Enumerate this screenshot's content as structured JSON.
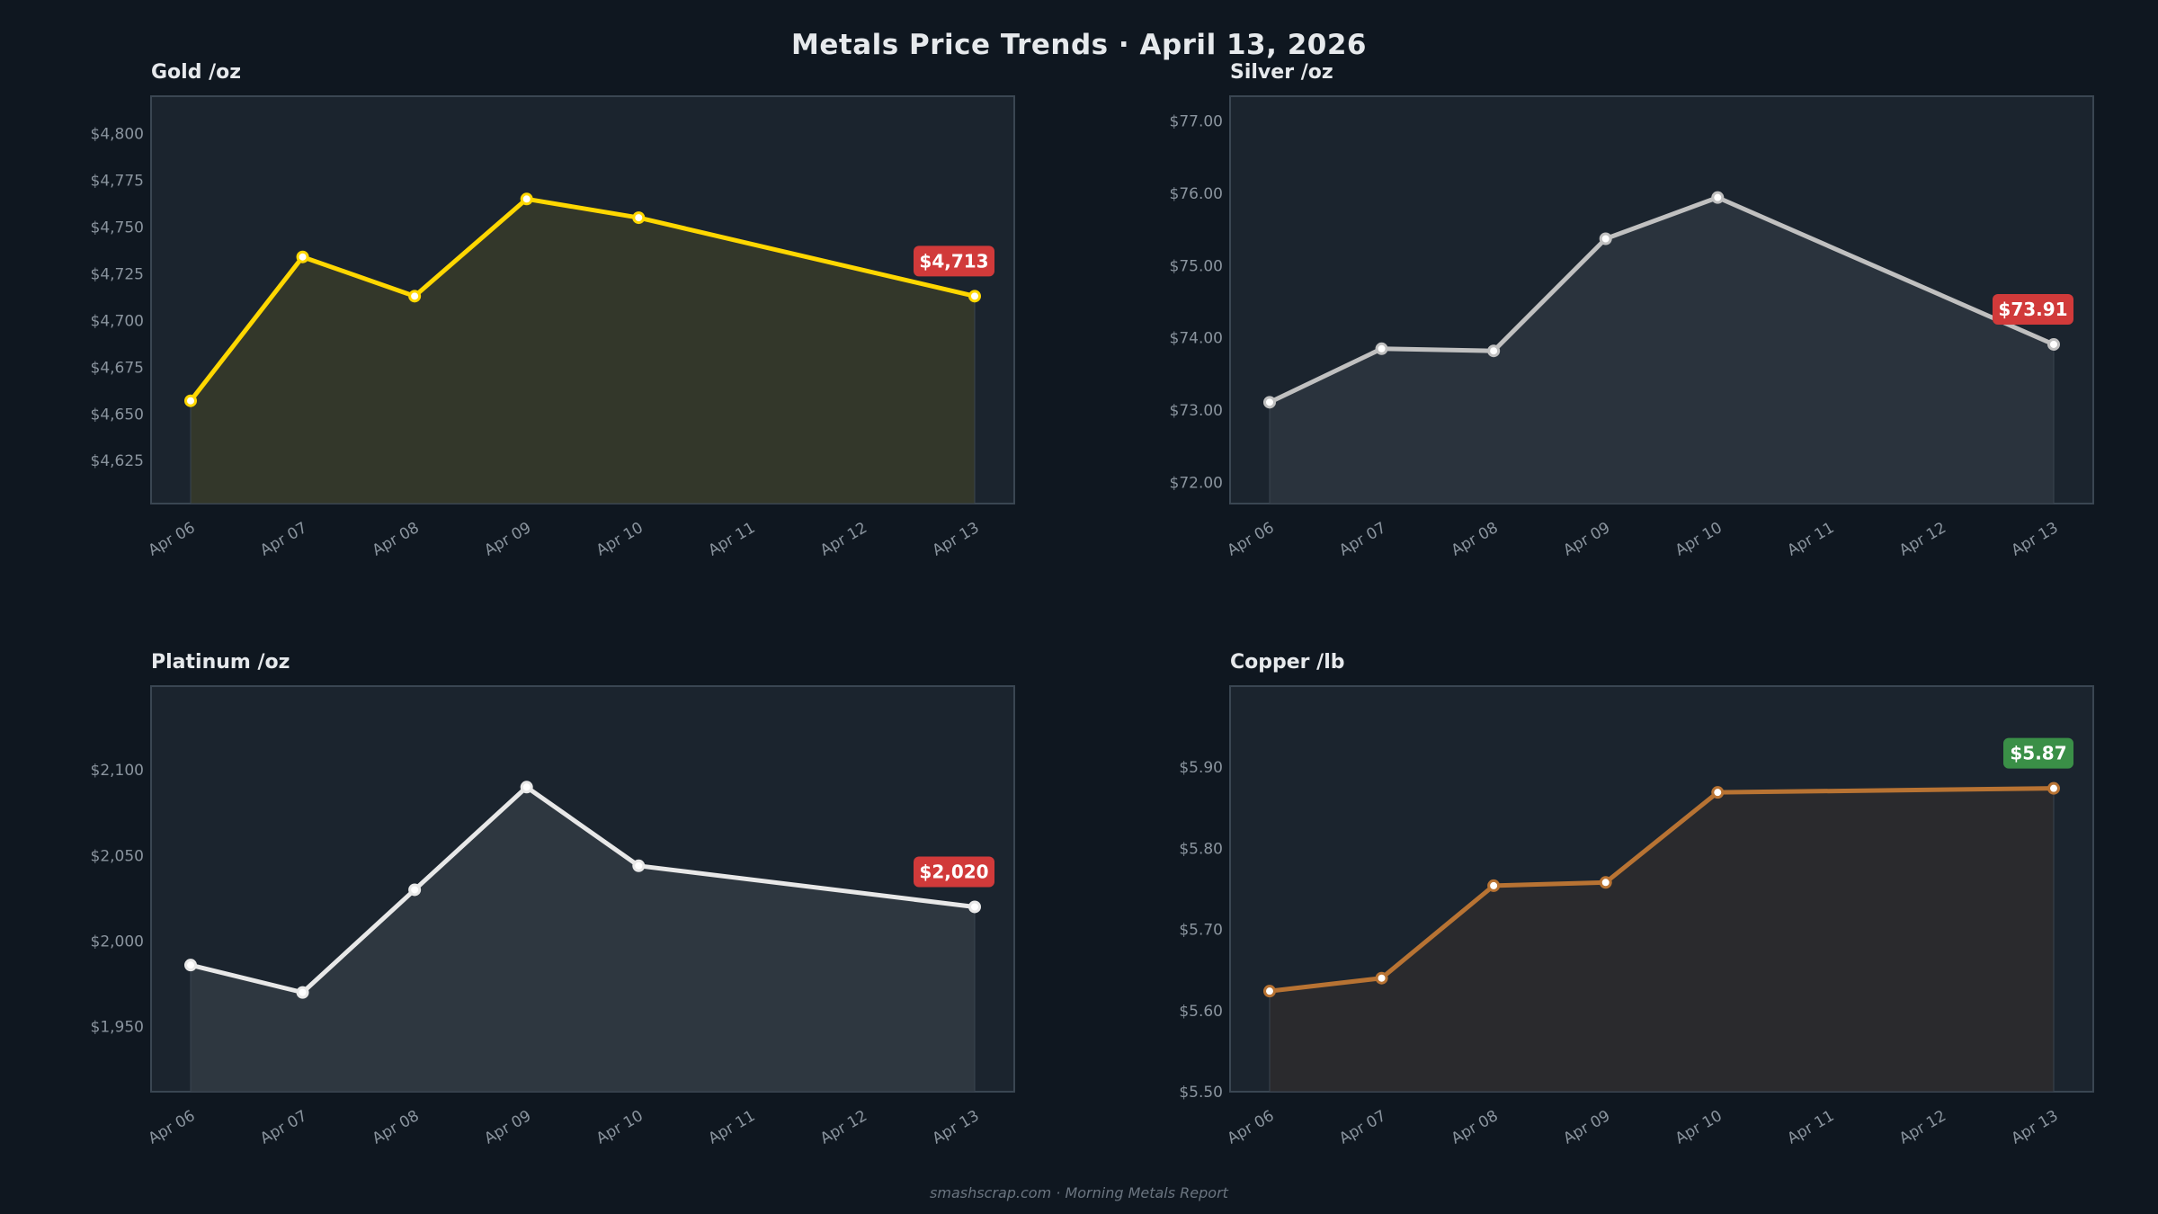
{
  "title": "Metals Price Trends  ·  April 13, 2026",
  "footer": "smashscrap.com  ·  Morning Metals Report",
  "colors": {
    "background": "#0f1720",
    "plot_background": "#1b242e",
    "badge_down": "#d13a3a",
    "badge_up": "#3a8f47"
  },
  "chart_data": [
    {
      "type": "area",
      "title": "Gold  /oz",
      "x_ticks": [
        "Apr 06",
        "Apr 07",
        "Apr 08",
        "Apr 09",
        "Apr 10",
        "Apr 11",
        "Apr 12",
        "Apr 13"
      ],
      "x": [
        "Apr 06",
        "Apr 07",
        "Apr 08",
        "Apr 09",
        "Apr 10",
        "Apr 13"
      ],
      "values": [
        4657,
        4734,
        4713,
        4765,
        4755,
        4713
      ],
      "ylim": [
        4602,
        4820
      ],
      "y_ticks": [
        4625,
        4650,
        4675,
        4700,
        4725,
        4750,
        4775,
        4800
      ],
      "y_tick_labels": [
        "$4,625",
        "$4,650",
        "$4,675",
        "$4,700",
        "$4,725",
        "$4,750",
        "$4,775",
        "$4,800"
      ],
      "last_label": "$4,713",
      "badge": "down",
      "line_color": "#ffd700",
      "fill_color": "#33372a",
      "grid": false
    },
    {
      "type": "area",
      "title": "Silver  /oz",
      "x_ticks": [
        "Apr 06",
        "Apr 07",
        "Apr 08",
        "Apr 09",
        "Apr 10",
        "Apr 11",
        "Apr 12",
        "Apr 13"
      ],
      "x": [
        "Apr 06",
        "Apr 07",
        "Apr 08",
        "Apr 09",
        "Apr 10",
        "Apr 13"
      ],
      "values": [
        73.11,
        73.85,
        73.82,
        75.37,
        75.94,
        73.91
      ],
      "ylim": [
        71.71,
        77.34
      ],
      "y_ticks": [
        72,
        73,
        74,
        75,
        76,
        77
      ],
      "y_tick_labels": [
        "$72.00",
        "$73.00",
        "$74.00",
        "$75.00",
        "$76.00",
        "$77.00"
      ],
      "last_label": "$73.91",
      "badge": "down",
      "line_color": "#c0c0c0",
      "fill_color": "#2a333d",
      "grid": false
    },
    {
      "type": "area",
      "title": "Platinum  /oz",
      "x_ticks": [
        "Apr 06",
        "Apr 07",
        "Apr 08",
        "Apr 09",
        "Apr 10",
        "Apr 11",
        "Apr 12",
        "Apr 13"
      ],
      "x": [
        "Apr 06",
        "Apr 07",
        "Apr 08",
        "Apr 09",
        "Apr 10",
        "Apr 13"
      ],
      "values": [
        1986,
        1970,
        2030,
        2090,
        2044,
        2020
      ],
      "ylim": [
        1912,
        2149
      ],
      "y_ticks": [
        1950,
        2000,
        2050,
        2100
      ],
      "y_tick_labels": [
        "$1,950",
        "$2,000",
        "$2,050",
        "$2,100"
      ],
      "last_label": "$2,020",
      "badge": "down",
      "line_color": "#e8e8e8",
      "fill_color": "#2e3740",
      "grid": false
    },
    {
      "type": "area",
      "title": "Copper  /lb",
      "x_ticks": [
        "Apr 06",
        "Apr 07",
        "Apr 08",
        "Apr 09",
        "Apr 10",
        "Apr 11",
        "Apr 12",
        "Apr 13"
      ],
      "x": [
        "Apr 06",
        "Apr 07",
        "Apr 08",
        "Apr 09",
        "Apr 10",
        "Apr 13"
      ],
      "values": [
        5.624,
        5.64,
        5.754,
        5.758,
        5.869,
        5.874
      ],
      "ylim": [
        5.5,
        6.0
      ],
      "y_ticks": [
        5.5,
        5.6,
        5.7,
        5.8,
        5.9
      ],
      "y_tick_labels": [
        "$5.50",
        "$5.60",
        "$5.70",
        "$5.80",
        "$5.90"
      ],
      "last_label": "$5.87",
      "badge": "up",
      "line_color": "#b87333",
      "fill_color": "#2a2a2d",
      "grid": false
    }
  ]
}
